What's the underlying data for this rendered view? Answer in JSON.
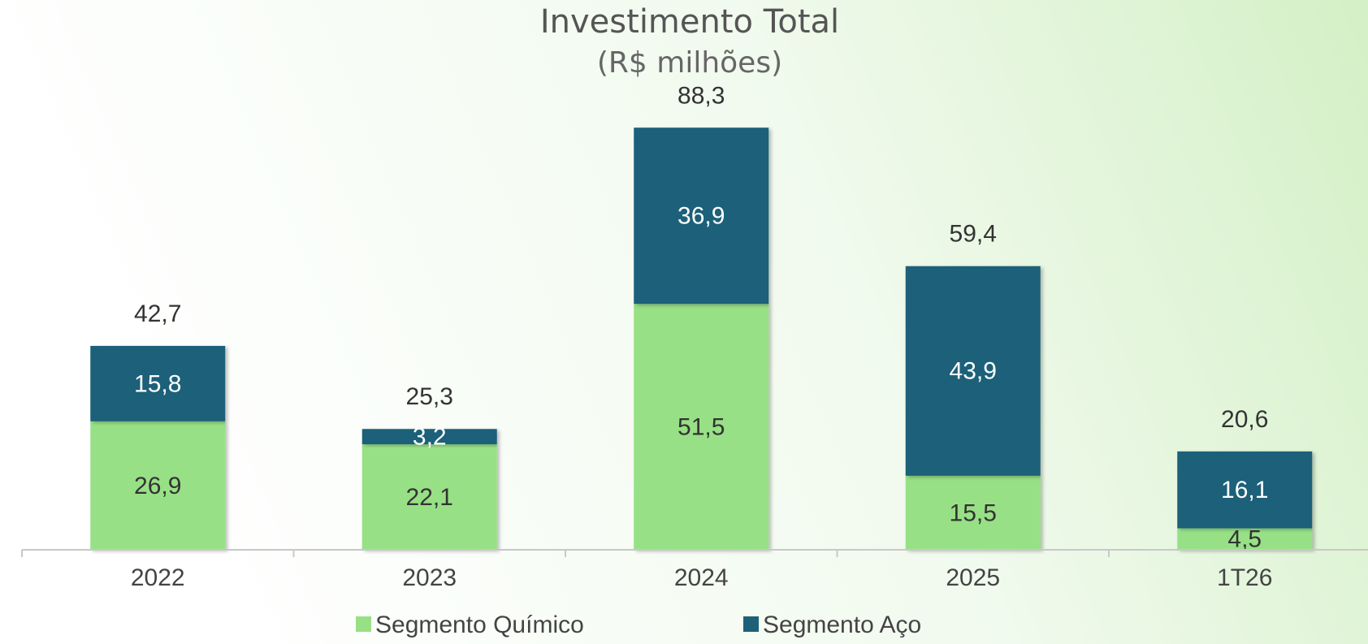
{
  "chart_data": {
    "type": "stacked_bar",
    "title": "Investimento Total",
    "subtitle": "(R$ milhões)",
    "categories": [
      "2022",
      "2023",
      "2024",
      "2025",
      "1T26"
    ],
    "series": [
      {
        "name": "Segmento Químico",
        "color": "#98e086",
        "label_color": "#333333",
        "values": [
          26.9,
          22.1,
          51.5,
          15.5,
          4.5
        ],
        "value_labels": [
          "26,9",
          "22,1",
          "51,5",
          "15,5",
          "4,5"
        ]
      },
      {
        "name": "Segmento Aço",
        "color": "#1f6079",
        "label_color": "#ffffff",
        "values": [
          15.8,
          3.2,
          36.9,
          43.9,
          16.1
        ],
        "value_labels": [
          "15,8",
          "3,2",
          "36,9",
          "43,9",
          "16,1"
        ]
      }
    ],
    "totals": [
      42.7,
      25.3,
      88.3,
      59.4,
      20.6
    ],
    "total_labels": [
      "42,7",
      "25,3",
      "88,3",
      "59,4",
      "20,6"
    ],
    "ylim": [
      0,
      100
    ]
  }
}
